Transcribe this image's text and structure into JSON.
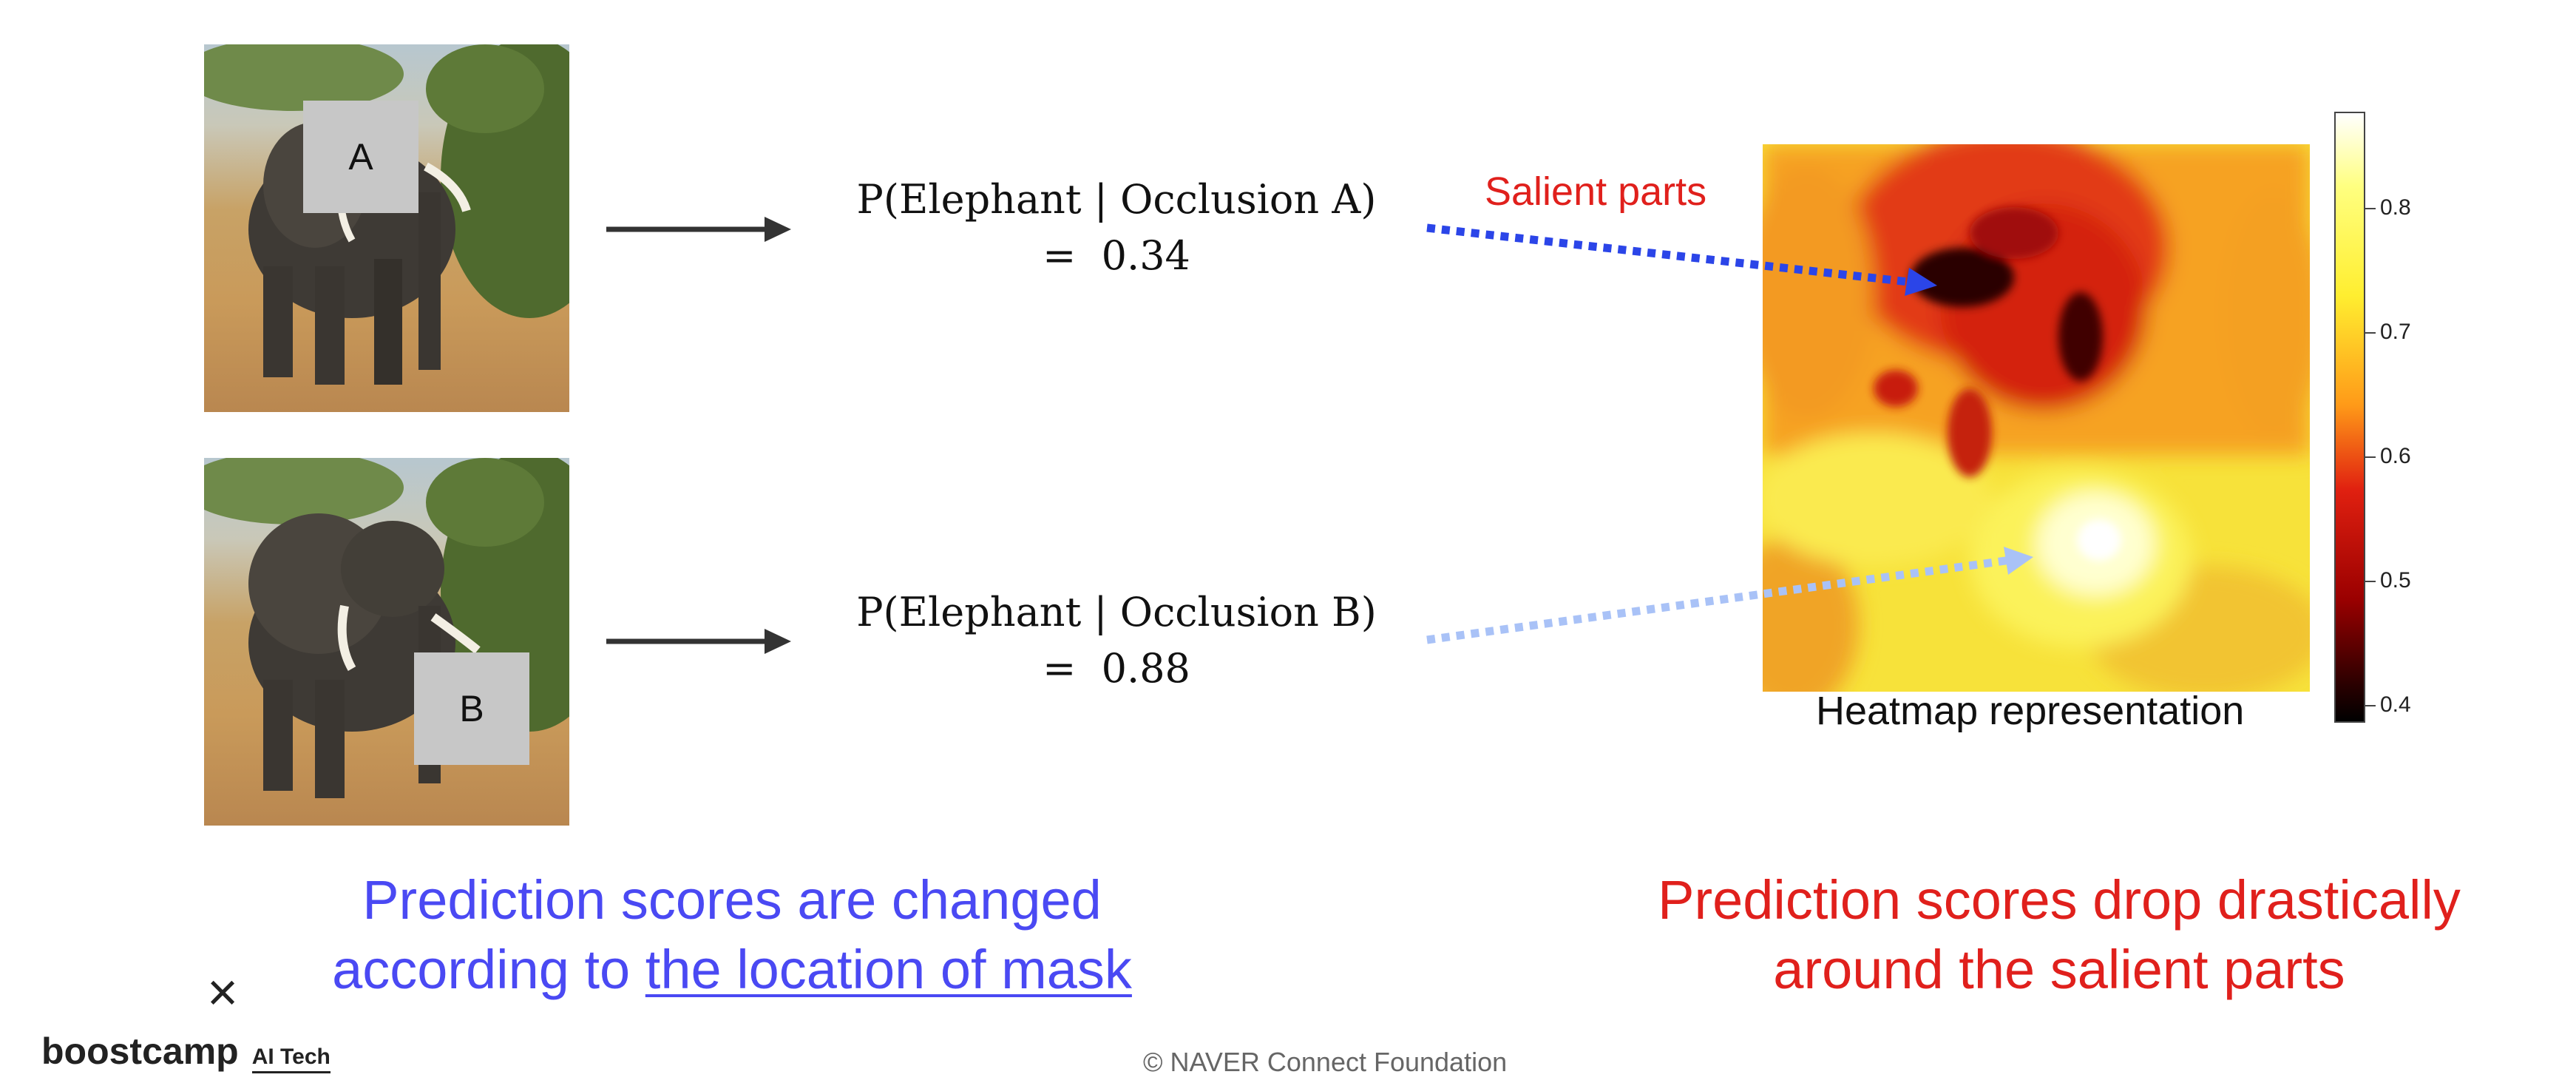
{
  "occlusion_a": {
    "box_label": "A",
    "formula_line1": "P(Elephant | Occlusion A)",
    "formula_line2": "=  0.34"
  },
  "occlusion_b": {
    "box_label": "B",
    "formula_line1": "P(Elephant | Occlusion B)",
    "formula_line2": "=  0.88"
  },
  "salient_label": "Salient parts",
  "heatmap": {
    "caption": "Heatmap representation",
    "colorbar_ticks": [
      "0.8",
      "0.7",
      "0.6",
      "0.5",
      "0.4"
    ]
  },
  "captions": {
    "left_line1": "Prediction scores are changed",
    "left_line2_prefix": "according to ",
    "left_line2_underlined": "the location of mask",
    "right_line1": "Prediction scores drop drastically",
    "right_line2": "around the salient parts"
  },
  "logo": {
    "close_glyph": "×",
    "brand": "boostcamp",
    "sub": "AI Tech"
  },
  "footer": "©  NAVER Connect Foundation",
  "colors": {
    "blue_text": "#4a49f3",
    "red_text": "#e0201c",
    "arrow_dark_blue": "#2b45e8",
    "arrow_light_blue": "#a9c2f7"
  }
}
